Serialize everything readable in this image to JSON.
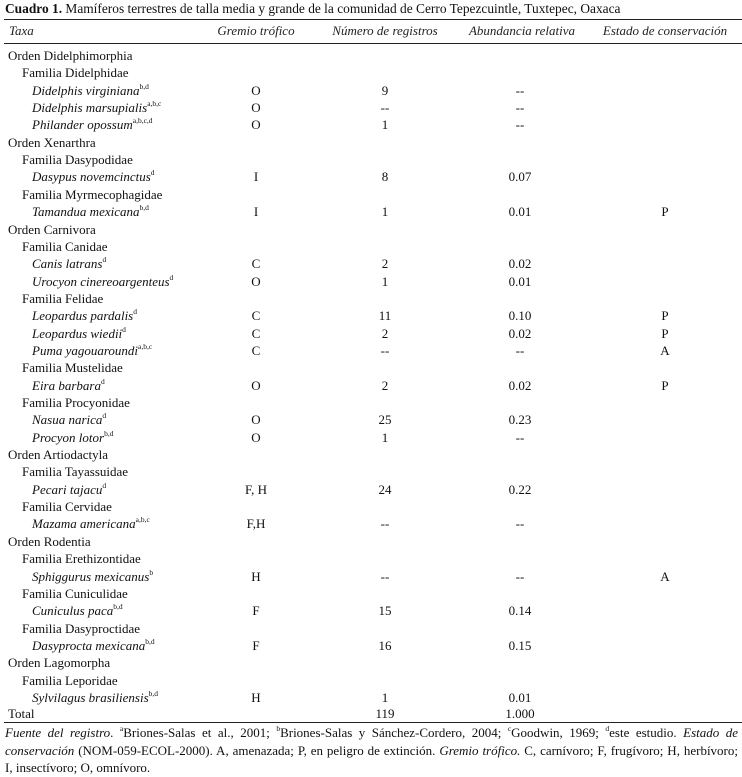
{
  "caption": {
    "label": "Cuadro 1.",
    "text": " Mamíferos terrestres de talla media y grande de la comunidad de Cerro Tepezcuintle, Tuxtepec, Oaxaca"
  },
  "headers": [
    "Taxa",
    "Gremio trófico",
    "Número de registros",
    "Abundancia relativa",
    "Estado de conservación"
  ],
  "rows": [
    {
      "level": "orden",
      "name": "Orden Didelphimorphia"
    },
    {
      "level": "familia",
      "name": "Familia Didelphidae"
    },
    {
      "level": "species",
      "name": "Didelphis virginiana",
      "sup": "b,d",
      "gremio": "O",
      "registros": "9",
      "abundancia": "--",
      "estado": ""
    },
    {
      "level": "species",
      "name": "Didelphis marsupialis",
      "sup": "a,b,c",
      "gremio": "O",
      "registros": "--",
      "abundancia": "--",
      "estado": ""
    },
    {
      "level": "species",
      "name": "Philander opossum",
      "sup": "a,b,c,d",
      "gremio": "O",
      "registros": "1",
      "abundancia": "--",
      "estado": ""
    },
    {
      "level": "orden",
      "name": "Orden Xenarthra"
    },
    {
      "level": "familia",
      "name": "Familia Dasypodidae"
    },
    {
      "level": "species",
      "name": "Dasypus novemcinctus",
      "sup": "d",
      "gremio": "I",
      "registros": "8",
      "abundancia": "0.07",
      "estado": ""
    },
    {
      "level": "familia",
      "name": "Familia Myrmecophagidae"
    },
    {
      "level": "species",
      "name": "Tamandua mexicana",
      "sup": "b,d",
      "gremio": "I",
      "registros": "1",
      "abundancia": "0.01",
      "estado": "P"
    },
    {
      "level": "orden",
      "name": "Orden Carnivora"
    },
    {
      "level": "familia",
      "name": "Familia Canidae"
    },
    {
      "level": "species",
      "name": "Canis latrans",
      "sup": "d",
      "gremio": "C",
      "registros": "2",
      "abundancia": "0.02",
      "estado": ""
    },
    {
      "level": "species",
      "name": "Urocyon cinereoargenteus",
      "sup": "d",
      "gremio": "O",
      "registros": "1",
      "abundancia": "0.01",
      "estado": ""
    },
    {
      "level": "familia",
      "name": "Familia Felidae"
    },
    {
      "level": "species",
      "name": "Leopardus pardalis",
      "sup": "d",
      "gremio": "C",
      "registros": "11",
      "abundancia": "0.10",
      "estado": "P"
    },
    {
      "level": "species",
      "name": "Leopardus wiedii",
      "sup": "d",
      "gremio": "C",
      "registros": "2",
      "abundancia": "0.02",
      "estado": "P"
    },
    {
      "level": "species",
      "name": "Puma yagouaroundi",
      "sup": "a,b,c",
      "gremio": "C",
      "registros": "--",
      "abundancia": "--",
      "estado": "A"
    },
    {
      "level": "familia",
      "name": "Familia Mustelidae"
    },
    {
      "level": "species",
      "name": "Eira barbara",
      "sup": "d",
      "gremio": "O",
      "registros": "2",
      "abundancia": "0.02",
      "estado": "P"
    },
    {
      "level": "familia",
      "name": "Familia Procyonidae"
    },
    {
      "level": "species",
      "name": "Nasua narica",
      "sup": "d",
      "gremio": "O",
      "registros": "25",
      "abundancia": "0.23",
      "estado": ""
    },
    {
      "level": "species",
      "name": "Procyon lotor",
      "sup": "b,d",
      "gremio": "O",
      "registros": "1",
      "abundancia": "--",
      "estado": ""
    },
    {
      "level": "orden",
      "name": "Orden Artiodactyla"
    },
    {
      "level": "familia",
      "name": "Familia Tayassuidae"
    },
    {
      "level": "species",
      "name": "Pecari tajacu",
      "sup": "d",
      "gremio": "F, H",
      "registros": "24",
      "abundancia": "0.22",
      "estado": ""
    },
    {
      "level": "familia",
      "name": "Familia Cervidae"
    },
    {
      "level": "species",
      "name": "Mazama americana",
      "sup": "a,b,c",
      "gremio": "F,H",
      "registros": "--",
      "abundancia": "--",
      "estado": ""
    },
    {
      "level": "orden",
      "name": "Orden Rodentia"
    },
    {
      "level": "familia",
      "name": "Familia Erethizontidae"
    },
    {
      "level": "species",
      "name": "Sphiggurus mexicanus",
      "sup": "b",
      "gremio": "H",
      "registros": "--",
      "abundancia": "--",
      "estado": "A"
    },
    {
      "level": "familia",
      "name": "Familia Cuniculidae"
    },
    {
      "level": "species",
      "name": "Cuniculus paca",
      "sup": "b,d",
      "gremio": "F",
      "registros": "15",
      "abundancia": "0.14",
      "estado": ""
    },
    {
      "level": "familia",
      "name": "Familia Dasyproctidae"
    },
    {
      "level": "species",
      "name": "Dasyprocta mexicana",
      "sup": "b,d",
      "gremio": "F",
      "registros": "16",
      "abundancia": "0.15",
      "estado": ""
    },
    {
      "level": "orden",
      "name": "Orden Lagomorpha"
    },
    {
      "level": "familia",
      "name": "Familia Leporidae"
    },
    {
      "level": "species",
      "name": "Sylvilagus brasiliensis",
      "sup": "b,d",
      "gremio": "H",
      "registros": "1",
      "abundancia": "0.01",
      "estado": ""
    }
  ],
  "total": {
    "label": "Total",
    "registros": "119",
    "abundancia": "1.000"
  },
  "footnote": {
    "t1": "Fuente del registro",
    "t2": ". ",
    "s_a": "a",
    "t3": "Briones-Salas et al., 2001; ",
    "s_b": "b",
    "t4": "Briones-Salas y Sánchez-Cordero, 2004; ",
    "s_c": "c",
    "t5": "Goodwin, 1969; ",
    "s_d": "d",
    "t6": "este estudio. ",
    "t7": "Estado de conservación",
    "t8": " (NOM-059-ECOL-2000). A,  amenazada; P, en peligro de extinción. ",
    "t9": "Gremio trófico.",
    "t10": " C, carnívoro; F, frugívoro; H, herbívoro; I, insectívoro; O, omnívoro."
  }
}
